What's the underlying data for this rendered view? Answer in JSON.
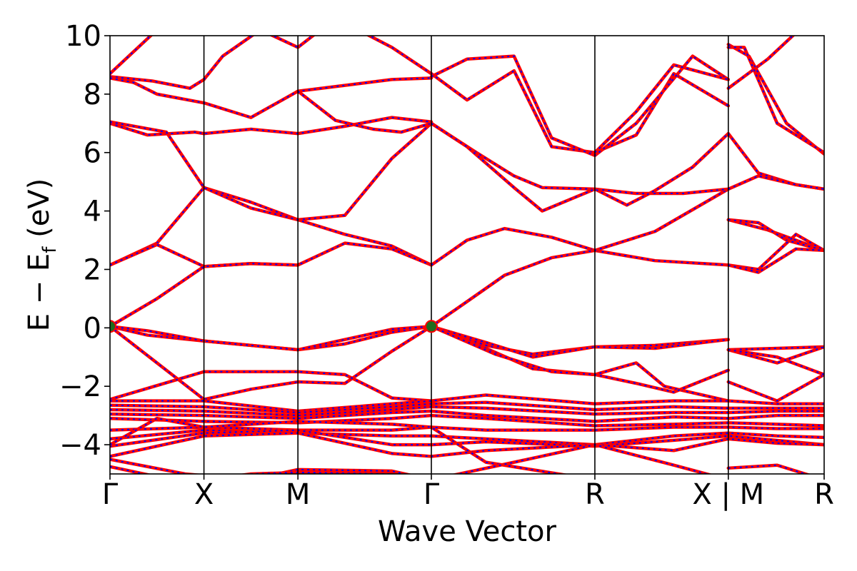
{
  "chart_data": {
    "type": "line",
    "xlabel": "Wave Vector",
    "ylabel_main": "E − E",
    "ylabel_sub": "f",
    "ylabel_unit": " (eV)",
    "xlim": [
      0,
      7.6
    ],
    "ylim": [
      -5,
      10
    ],
    "yticks": [
      {
        "value": -4,
        "label": "−4"
      },
      {
        "value": -2,
        "label": "−2"
      },
      {
        "value": 0,
        "label": "0"
      },
      {
        "value": 2,
        "label": "2"
      },
      {
        "value": 4,
        "label": "4"
      },
      {
        "value": 6,
        "label": "6"
      },
      {
        "value": 8,
        "label": "8"
      },
      {
        "value": 10,
        "label": "10"
      }
    ],
    "kpoints": [
      {
        "x": 0.0,
        "label": "Γ"
      },
      {
        "x": 1.0,
        "label": "X"
      },
      {
        "x": 2.0,
        "label": "M"
      },
      {
        "x": 3.42,
        "label": "Γ"
      },
      {
        "x": 5.16,
        "label": "R"
      },
      {
        "x": 6.58,
        "label": "X | M"
      },
      {
        "x": 7.6,
        "label": "R"
      }
    ],
    "band_style": {
      "color": "#ff0000",
      "overlay_color": "#0000ff"
    },
    "marker_style": {
      "color": "#1f6b1f",
      "edge_color": "#ff0000"
    },
    "markers": [
      {
        "x": 0.0,
        "y": 0.05
      },
      {
        "x": 3.42,
        "y": 0.05
      }
    ],
    "series": [
      {
        "x": [
          0,
          0.5,
          1.0
        ],
        "y": [
          8.7,
          10.2,
          11.0
        ]
      },
      {
        "x": [
          0,
          0.45,
          0.85,
          1.0
        ],
        "y": [
          8.6,
          8.45,
          8.2,
          8.5
        ]
      },
      {
        "x": [
          1.0,
          1.2,
          1.6,
          2.0,
          2.4,
          3.0,
          3.42
        ],
        "y": [
          8.5,
          9.3,
          10.2,
          9.6,
          10.6,
          9.6,
          8.7
        ]
      },
      {
        "x": [
          0,
          0.25,
          0.5,
          1.0,
          1.5,
          2.0,
          2.5,
          3.0,
          3.42
        ],
        "y": [
          8.55,
          8.4,
          8.0,
          7.7,
          7.2,
          8.1,
          8.3,
          8.5,
          8.55
        ]
      },
      {
        "x": [
          0,
          0.4,
          0.9,
          1.0,
          1.5,
          2.0,
          2.5,
          3.0,
          3.42
        ],
        "y": [
          7.0,
          6.6,
          6.7,
          6.65,
          6.8,
          6.65,
          6.9,
          7.2,
          7.05
        ]
      },
      {
        "x": [
          0,
          0.6,
          1.0,
          1.5,
          2.0,
          2.5,
          3.0,
          3.42
        ],
        "y": [
          7.05,
          6.7,
          4.8,
          4.3,
          3.7,
          3.85,
          5.8,
          7.0
        ]
      },
      {
        "x": [
          2.0,
          2.4,
          2.8,
          3.1,
          3.42
        ],
        "y": [
          8.1,
          7.1,
          6.8,
          6.7,
          7.0
        ]
      },
      {
        "x": [
          0,
          0.5,
          1.0,
          1.5,
          2.0,
          2.5,
          3.0,
          3.42
        ],
        "y": [
          2.15,
          2.9,
          4.8,
          4.1,
          3.7,
          3.2,
          2.8,
          2.15
        ]
      },
      {
        "x": [
          0,
          0.5,
          1.0,
          1.5,
          2.0,
          2.5,
          3.0,
          3.42
        ],
        "y": [
          2.15,
          2.85,
          2.1,
          2.2,
          2.15,
          2.9,
          2.7,
          2.15
        ]
      },
      {
        "x": [
          0,
          0.5,
          1.0,
          1.5,
          2.0
        ],
        "y": [
          0.05,
          1.0,
          2.1,
          2.2,
          2.15
        ]
      },
      {
        "x": [
          3.42,
          3.8,
          4.2,
          4.7,
          5.16,
          5.8,
          6.58
        ],
        "y": [
          2.15,
          3.0,
          3.4,
          3.1,
          2.65,
          2.3,
          2.15
        ]
      },
      {
        "x": [
          3.42,
          3.8,
          4.2,
          4.7,
          5.16,
          5.8,
          6.58
        ],
        "y": [
          0.05,
          0.9,
          1.8,
          2.4,
          2.65,
          3.3,
          4.75
        ]
      },
      {
        "x": [
          3.42,
          3.9,
          4.3,
          4.6,
          5.16,
          5.6,
          6.1,
          6.58
        ],
        "y": [
          7.0,
          6.0,
          5.2,
          4.8,
          4.75,
          4.6,
          4.6,
          4.75
        ]
      },
      {
        "x": [
          3.42,
          3.8,
          4.3,
          4.6,
          5.16,
          5.5,
          5.8,
          6.2,
          6.58
        ],
        "y": [
          7.0,
          6.2,
          4.8,
          4.0,
          4.75,
          4.2,
          4.7,
          5.5,
          6.65
        ]
      },
      {
        "x": [
          3.42,
          3.8,
          4.3,
          4.7,
          5.16,
          5.6,
          6.0,
          6.58
        ],
        "y": [
          8.7,
          7.8,
          8.8,
          6.2,
          6.0,
          6.6,
          8.7,
          7.6
        ]
      },
      {
        "x": [
          3.42,
          3.8,
          4.3,
          4.7,
          5.16,
          5.6,
          6.2,
          6.58
        ],
        "y": [
          8.6,
          9.2,
          9.3,
          6.5,
          5.9,
          7.0,
          9.3,
          8.5
        ]
      },
      {
        "x": [
          5.16,
          5.6,
          6.0,
          6.58
        ],
        "y": [
          6.0,
          7.4,
          9.0,
          8.5
        ]
      },
      {
        "x": [
          0,
          0.4,
          1.0,
          1.5,
          2.0,
          2.5,
          3.0,
          3.42
        ],
        "y": [
          0.05,
          -0.25,
          -0.45,
          -0.6,
          -0.75,
          -0.55,
          -0.15,
          0.05
        ]
      },
      {
        "x": [
          0,
          0.4,
          1.0,
          1.5,
          2.0,
          2.5,
          3.0,
          3.42
        ],
        "y": [
          0.05,
          -0.1,
          -0.45,
          -0.6,
          -0.75,
          -0.4,
          -0.05,
          0.05
        ]
      },
      {
        "x": [
          0,
          0.5,
          1.0,
          1.5,
          2.0,
          2.5,
          3.0,
          3.42
        ],
        "y": [
          0.05,
          -1.2,
          -2.45,
          -2.1,
          -1.85,
          -1.9,
          -0.8,
          0.05
        ]
      },
      {
        "x": [
          3.42,
          4.0,
          4.5,
          5.16,
          5.8,
          6.58
        ],
        "y": [
          0.05,
          -0.6,
          -0.9,
          -0.65,
          -0.6,
          -0.4
        ]
      },
      {
        "x": [
          3.42,
          4.0,
          4.5,
          5.16,
          5.8,
          6.58
        ],
        "y": [
          0.05,
          -0.5,
          -1.0,
          -0.65,
          -0.7,
          -0.4
        ]
      },
      {
        "x": [
          3.42,
          4.0,
          4.5,
          5.16,
          5.6,
          5.9,
          6.58
        ],
        "y": [
          0.05,
          -0.7,
          -1.4,
          -1.6,
          -1.2,
          -2.0,
          -2.5
        ]
      },
      {
        "x": [
          3.42,
          4.1,
          4.7,
          5.16,
          5.6,
          6.0,
          6.58
        ],
        "y": [
          0.05,
          -0.9,
          -1.5,
          -1.6,
          -1.9,
          -2.2,
          -1.45
        ]
      },
      {
        "x": [
          0,
          1.0,
          1.5,
          2.0,
          2.5,
          3.0,
          3.42
        ],
        "y": [
          -2.45,
          -1.5,
          -1.5,
          -1.5,
          -1.6,
          -2.4,
          -2.5
        ]
      },
      {
        "x": [
          6.58,
          7.1,
          7.6
        ],
        "y": [
          -0.75,
          -0.7,
          -0.65
        ]
      },
      {
        "x": [
          6.58,
          7.1,
          7.6
        ],
        "y": [
          -0.75,
          -1.2,
          -0.65
        ]
      },
      {
        "x": [
          6.58,
          7.1,
          7.6
        ],
        "y": [
          -1.85,
          -2.5,
          -1.6
        ]
      },
      {
        "x": [
          6.58,
          7.1,
          7.6
        ],
        "y": [
          -0.75,
          -1.0,
          -1.6
        ]
      },
      {
        "x": [
          6.58,
          7.0,
          7.6
        ],
        "y": [
          8.2,
          9.2,
          11.0
        ]
      },
      {
        "x": [
          6.58,
          6.8,
          7.2,
          7.6
        ],
        "y": [
          9.7,
          9.3,
          7.0,
          5.95
        ]
      },
      {
        "x": [
          6.58,
          6.75,
          7.1,
          7.6
        ],
        "y": [
          9.6,
          9.6,
          7.0,
          6.0
        ]
      },
      {
        "x": [
          6.58,
          6.9,
          7.3,
          7.6
        ],
        "y": [
          6.65,
          5.3,
          4.9,
          4.75
        ]
      },
      {
        "x": [
          6.58,
          6.9,
          7.3,
          7.6
        ],
        "y": [
          4.75,
          5.2,
          4.9,
          4.75
        ]
      },
      {
        "x": [
          6.58,
          7.0,
          7.6
        ],
        "y": [
          3.7,
          3.35,
          2.65
        ]
      },
      {
        "x": [
          6.58,
          6.9,
          7.2,
          7.6
        ],
        "y": [
          3.7,
          3.6,
          3.0,
          2.65
        ]
      },
      {
        "x": [
          6.58,
          6.9,
          7.3,
          7.6
        ],
        "y": [
          2.15,
          2.0,
          3.2,
          2.65
        ]
      },
      {
        "x": [
          6.58,
          6.9,
          7.3,
          7.6
        ],
        "y": [
          2.15,
          1.9,
          2.7,
          2.65
        ]
      },
      {
        "x": [
          0,
          1.0,
          2.0,
          3.0,
          3.42,
          4.0,
          5.16,
          6.0,
          6.58,
          7.1,
          7.6
        ],
        "y": [
          -2.5,
          -2.5,
          -2.85,
          -2.6,
          -2.5,
          -2.3,
          -2.6,
          -2.5,
          -2.5,
          -2.6,
          -2.6
        ]
      },
      {
        "x": [
          0,
          1.0,
          2.0,
          3.0,
          3.42,
          4.0,
          5.16,
          6.0,
          6.58,
          7.1,
          7.6
        ],
        "y": [
          -2.65,
          -2.7,
          -2.9,
          -2.7,
          -2.6,
          -2.55,
          -2.8,
          -2.7,
          -2.75,
          -2.75,
          -2.75
        ]
      },
      {
        "x": [
          0,
          1.0,
          2.0,
          3.0,
          3.42,
          4.0,
          5.16,
          6.0,
          6.58,
          7.1,
          7.6
        ],
        "y": [
          -2.8,
          -2.85,
          -3.0,
          -2.8,
          -2.7,
          -2.75,
          -2.95,
          -2.9,
          -2.9,
          -2.85,
          -2.85
        ]
      },
      {
        "x": [
          0,
          1.0,
          2.0,
          3.0,
          3.42,
          4.0,
          5.16,
          6.0,
          6.58,
          7.1,
          7.6
        ],
        "y": [
          -2.95,
          -3.0,
          -3.1,
          -2.9,
          -2.85,
          -3.0,
          -3.2,
          -3.05,
          -3.1,
          -3.0,
          -3.0
        ]
      },
      {
        "x": [
          0,
          1.0,
          2.0,
          3.0,
          3.42,
          4.0,
          5.16,
          6.0,
          6.58,
          7.1,
          7.6
        ],
        "y": [
          -3.1,
          -3.2,
          -3.25,
          -3.1,
          -3.0,
          -3.1,
          -3.35,
          -3.3,
          -3.25,
          -3.3,
          -3.35
        ]
      },
      {
        "x": [
          0,
          1.0,
          2.0,
          3.0,
          3.42,
          4.0,
          5.16,
          6.0,
          6.58,
          7.1,
          7.6
        ],
        "y": [
          -3.5,
          -3.4,
          -3.5,
          -3.5,
          -3.4,
          -3.5,
          -3.5,
          -3.4,
          -3.4,
          -3.45,
          -3.45
        ]
      },
      {
        "x": [
          0,
          1.0,
          2.0,
          3.0,
          3.42,
          4.0,
          5.16,
          6.0,
          6.58,
          7.1,
          7.6
        ],
        "y": [
          -3.8,
          -3.5,
          -3.6,
          -3.7,
          -3.7,
          -3.8,
          -4.0,
          -3.7,
          -3.6,
          -3.7,
          -3.75
        ]
      },
      {
        "x": [
          0,
          1.0,
          2.0,
          3.0,
          3.42,
          4.0,
          5.16,
          6.0,
          6.58,
          7.1,
          7.6
        ],
        "y": [
          -4.05,
          -3.6,
          -3.5,
          -4.0,
          -4.0,
          -3.9,
          -4.05,
          -3.85,
          -3.7,
          -3.85,
          -4.0
        ]
      },
      {
        "x": [
          0,
          1.0,
          2.0,
          3.0,
          3.42,
          4.0,
          5.16,
          6.0,
          6.58,
          7.1,
          7.6
        ],
        "y": [
          -4.4,
          -3.7,
          -3.6,
          -4.3,
          -4.4,
          -4.2,
          -4.0,
          -4.2,
          -3.8,
          -3.95,
          -4.0
        ]
      },
      {
        "x": [
          0,
          0.5,
          1.0,
          2.0,
          3.0,
          3.42,
          4.0,
          5.16
        ],
        "y": [
          -4.0,
          -3.1,
          -3.4,
          -3.2,
          -3.3,
          -3.4,
          -4.6,
          -5.2
        ]
      },
      {
        "x": [
          0,
          0.8,
          1.5,
          2.0,
          3.0,
          3.42,
          4.3,
          5.16,
          6.0,
          6.58
        ],
        "y": [
          -4.5,
          -5.0,
          -5.2,
          -4.85,
          -4.9,
          -5.2,
          -4.6,
          -4.0,
          -4.7,
          -5.2
        ]
      },
      {
        "x": [
          0,
          0.8,
          1.5,
          2.0,
          3.0,
          3.42
        ],
        "y": [
          -4.75,
          -5.3,
          -5.0,
          -4.95,
          -5.0,
          -5.2
        ]
      },
      {
        "x": [
          6.58,
          7.1,
          7.6
        ],
        "y": [
          -4.8,
          -4.7,
          -5.2
        ]
      }
    ]
  }
}
